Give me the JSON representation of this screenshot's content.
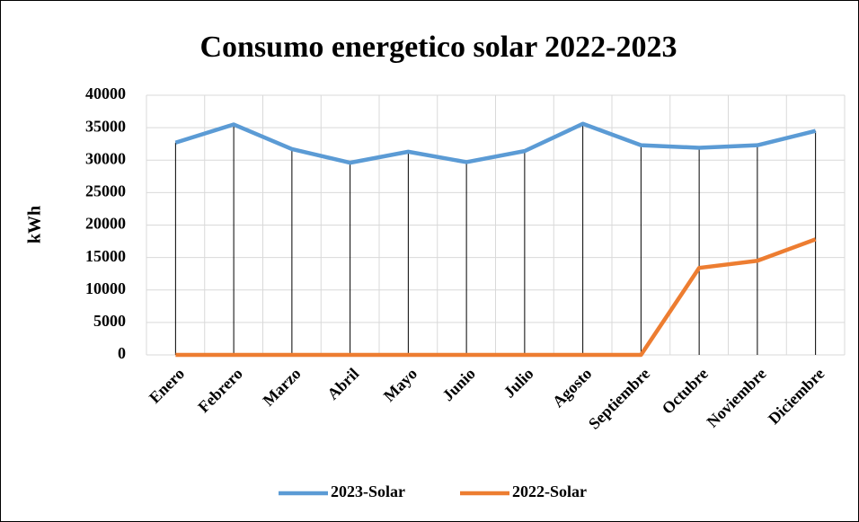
{
  "chart_data": {
    "type": "line",
    "title": "Consumo energetico solar 2022-2023",
    "y_label": "kWh",
    "categories": [
      "Enero",
      "Febrero",
      "Marzo",
      "Abril",
      "Mayo",
      "Junio",
      "Julio",
      "Agosto",
      "Septiembre",
      "Octubre",
      "Noviembre",
      "Diciembre"
    ],
    "series": [
      {
        "name": "2023-Solar",
        "color": "#5b9bd5",
        "values": [
          32700,
          35500,
          31700,
          29600,
          31300,
          29700,
          31400,
          35600,
          32300,
          31900,
          32300,
          34500
        ]
      },
      {
        "name": "2022-Solar",
        "color": "#ed7d31",
        "values": [
          0,
          0,
          0,
          0,
          0,
          0,
          0,
          0,
          0,
          13400,
          14500,
          17800
        ]
      }
    ],
    "ylim": [
      0,
      40000
    ],
    "yticks": [
      0,
      5000,
      10000,
      15000,
      20000,
      25000,
      30000,
      35000,
      40000
    ],
    "grid": true,
    "drop_lines": true,
    "legend": "bottom"
  }
}
